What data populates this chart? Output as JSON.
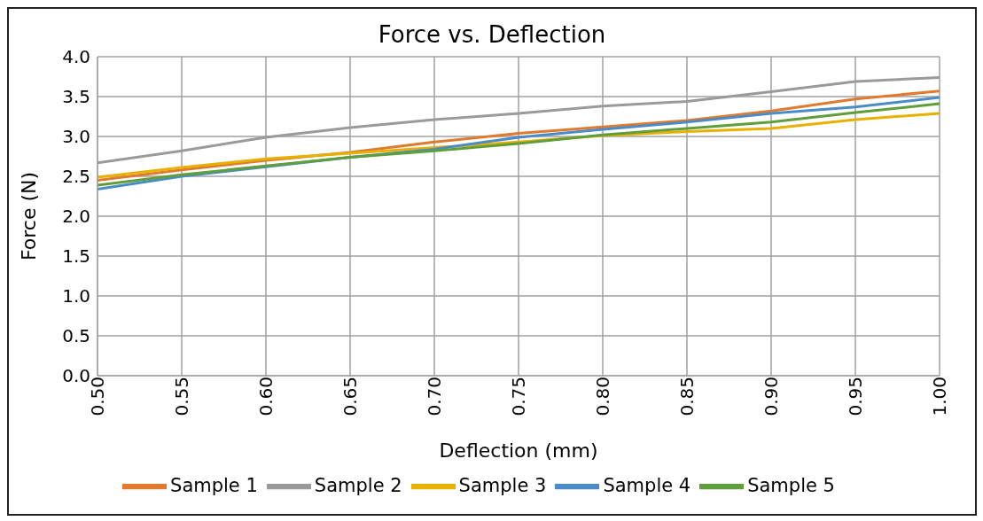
{
  "chart_data": {
    "type": "line",
    "title": "Force vs. Deflection",
    "xlabel": "Deflection (mm)",
    "ylabel": "Force (N)",
    "x": [
      0.5,
      0.55,
      0.6,
      0.65,
      0.7,
      0.75,
      0.8,
      0.85,
      0.9,
      0.95,
      1.0
    ],
    "xlim": [
      0.5,
      1.0
    ],
    "xticks": [
      {
        "value": 0.5,
        "label": "0.50"
      },
      {
        "value": 0.55,
        "label": "0.55"
      },
      {
        "value": 0.6,
        "label": "0.60"
      },
      {
        "value": 0.65,
        "label": "0.65"
      },
      {
        "value": 0.7,
        "label": "0.70"
      },
      {
        "value": 0.75,
        "label": "0.75"
      },
      {
        "value": 0.8,
        "label": "0.80"
      },
      {
        "value": 0.85,
        "label": "0.85"
      },
      {
        "value": 0.9,
        "label": "0.90"
      },
      {
        "value": 0.95,
        "label": "0.95"
      },
      {
        "value": 1.0,
        "label": "1.00"
      }
    ],
    "ylim": [
      0,
      4
    ],
    "yticks": [
      {
        "value": 0,
        "label": "0.0"
      },
      {
        "value": 0.5,
        "label": "0.5"
      },
      {
        "value": 1,
        "label": "1.0"
      },
      {
        "value": 1.5,
        "label": "1.5"
      },
      {
        "value": 2,
        "label": "2.0"
      },
      {
        "value": 2.5,
        "label": "2.5"
      },
      {
        "value": 3,
        "label": "3.0"
      },
      {
        "value": 3.5,
        "label": "3.5"
      },
      {
        "value": 4,
        "label": "4.0"
      }
    ],
    "series": [
      {
        "name": "Sample 1",
        "color": "#e07a2e",
        "values": [
          2.45,
          2.58,
          2.7,
          2.8,
          2.93,
          3.04,
          3.12,
          3.2,
          3.32,
          3.47,
          3.57
        ]
      },
      {
        "name": "Sample 2",
        "color": "#9a9a9a",
        "values": [
          2.67,
          2.82,
          2.99,
          3.11,
          3.21,
          3.29,
          3.38,
          3.44,
          3.56,
          3.69,
          3.74
        ]
      },
      {
        "name": "Sample 3",
        "color": "#e8b000",
        "values": [
          2.49,
          2.61,
          2.72,
          2.79,
          2.86,
          2.93,
          3.01,
          3.06,
          3.1,
          3.21,
          3.29
        ]
      },
      {
        "name": "Sample 4",
        "color": "#4a8cc8",
        "values": [
          2.34,
          2.5,
          2.62,
          2.74,
          2.84,
          2.99,
          3.09,
          3.18,
          3.29,
          3.37,
          3.49
        ]
      },
      {
        "name": "Sample 5",
        "color": "#5f9e3a",
        "values": [
          2.39,
          2.52,
          2.63,
          2.74,
          2.82,
          2.91,
          3.02,
          3.1,
          3.18,
          3.3,
          3.41
        ]
      }
    ],
    "grid": true,
    "legend": "bottom",
    "marker": "none",
    "line_style": "solid"
  }
}
